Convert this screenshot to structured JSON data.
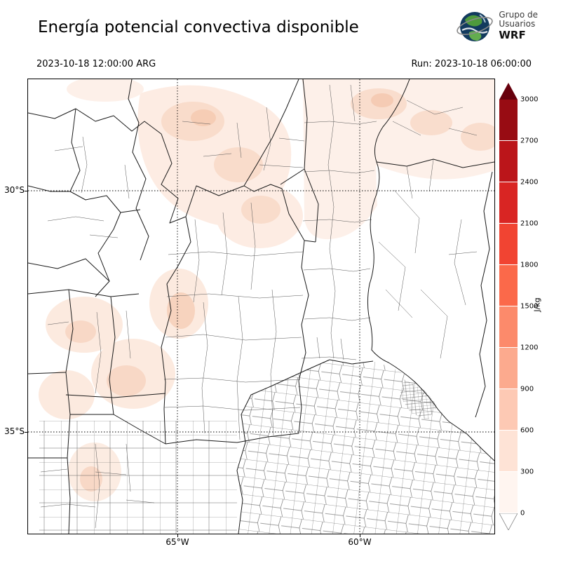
{
  "header": {
    "title": "Energía potencial convectiva disponible",
    "valid_time": "2023-10-18 12:00:00 ARG",
    "run_label": "Run: 2023-10-18 06:00:00",
    "logo": {
      "line1": "Grupo de",
      "line2": "Usuarios",
      "line3": "WRF"
    }
  },
  "map": {
    "x_ticks": [
      "65°W",
      "60°W"
    ],
    "y_ticks": [
      "30°S",
      "35°S"
    ]
  },
  "colorbar": {
    "unit": "J/kg",
    "min": 0,
    "max": 3000,
    "step": 300,
    "tick_labels_top_to_bottom": [
      "3000",
      "2700",
      "2400",
      "2100",
      "1800",
      "1500",
      "1200",
      "900",
      "600",
      "300",
      "0"
    ],
    "colors_top_to_bottom": [
      "#980c13",
      "#bb151a",
      "#d92523",
      "#f14432",
      "#fb694a",
      "#fc8a6b",
      "#fcaa8e",
      "#fdc9b4",
      "#fee3d6",
      "#fff5f0"
    ],
    "over_color": "#67000d",
    "under_color": "#ffffff"
  }
}
